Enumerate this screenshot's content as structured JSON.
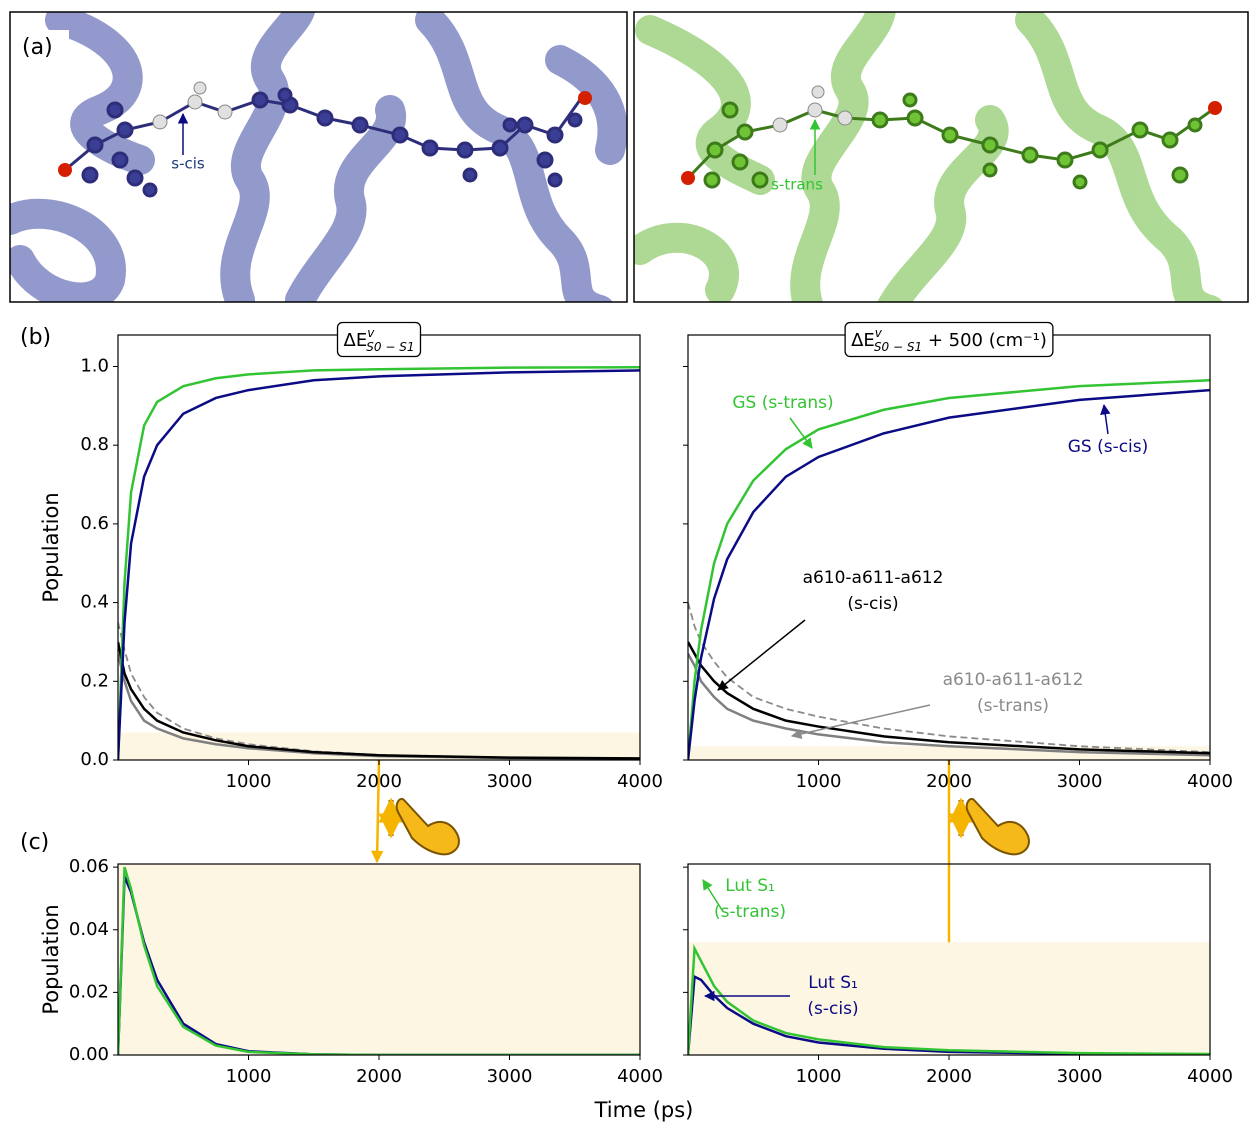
{
  "panel_a": {
    "label": "(a)",
    "left_label": "s-cis",
    "right_label": "s-trans"
  },
  "panel_b_label": "(b)",
  "panel_c_label": "(c)",
  "xlabel": "Time (ps)",
  "chart_data": [
    {
      "type": "line",
      "ylabel": "Population",
      "title": {
        "main": "ΔE",
        "sup": "v",
        "sub": "S0 − S1"
      },
      "x": [
        0,
        50,
        100,
        200,
        300,
        500,
        750,
        1000,
        1500,
        2000,
        3000,
        4000
      ],
      "xlim": [
        0,
        4000
      ],
      "xticks": [
        1000,
        2000,
        3000,
        4000
      ],
      "ylim": [
        0,
        1.08
      ],
      "yticks": [
        {
          "value": 0,
          "label": "0.0"
        },
        0.2,
        0.4,
        0.6,
        0.8,
        {
          "value": 1,
          "label": "1.0"
        }
      ],
      "highlight_y": [
        0,
        0.07
      ],
      "series": [
        {
          "color": "#8a8a8a",
          "linestyle": "dashed",
          "values": [
            0.35,
            0.28,
            0.22,
            0.16,
            0.12,
            0.08,
            0.055,
            0.04,
            0.022,
            0.013,
            0.006,
            0.003
          ]
        },
        {
          "color": "#808080",
          "linestyle": "solid",
          "values": [
            0.27,
            0.2,
            0.15,
            0.1,
            0.08,
            0.055,
            0.04,
            0.03,
            0.017,
            0.01,
            0.005,
            0.003
          ]
        },
        {
          "color": "#000000",
          "linestyle": "solid",
          "values": [
            0.3,
            0.22,
            0.18,
            0.13,
            0.1,
            0.07,
            0.05,
            0.035,
            0.02,
            0.012,
            0.006,
            0.004
          ]
        },
        {
          "color": "#33c433",
          "linestyle": "solid",
          "values": [
            0,
            0.45,
            0.68,
            0.85,
            0.91,
            0.95,
            0.97,
            0.98,
            0.99,
            0.993,
            0.997,
            0.998
          ]
        },
        {
          "color": "#0b0b85",
          "linestyle": "solid",
          "values": [
            0,
            0.35,
            0.55,
            0.72,
            0.8,
            0.88,
            0.92,
            0.94,
            0.965,
            0.975,
            0.985,
            0.99
          ]
        }
      ],
      "annotations": []
    },
    {
      "type": "line",
      "title": {
        "main": "ΔE",
        "sup": "v",
        "sub": "S0 − S1",
        "suffix": " + 500 (cm⁻¹)"
      },
      "x": [
        0,
        50,
        100,
        200,
        300,
        500,
        750,
        1000,
        1500,
        2000,
        3000,
        4000
      ],
      "xlim": [
        0,
        4000
      ],
      "xticks": [
        1000,
        2000,
        3000,
        4000
      ],
      "ylim": [
        0,
        1.08
      ],
      "yticks": [
        0,
        0.2,
        0.4,
        0.6,
        0.8,
        1
      ],
      "highlight_y": [
        0,
        0.035
      ],
      "series": [
        {
          "color": "#8a8a8a",
          "linestyle": "dashed",
          "values": [
            0.4,
            0.34,
            0.3,
            0.25,
            0.21,
            0.16,
            0.13,
            0.11,
            0.08,
            0.06,
            0.035,
            0.02
          ]
        },
        {
          "color": "#808080",
          "linestyle": "solid",
          "values": [
            0.27,
            0.24,
            0.2,
            0.16,
            0.13,
            0.1,
            0.08,
            0.065,
            0.045,
            0.035,
            0.02,
            0.012
          ]
        },
        {
          "color": "#000000",
          "linestyle": "solid",
          "values": [
            0.3,
            0.27,
            0.24,
            0.2,
            0.17,
            0.13,
            0.1,
            0.085,
            0.06,
            0.045,
            0.027,
            0.017
          ]
        },
        {
          "color": "#33c433",
          "linestyle": "solid",
          "values": [
            0,
            0.2,
            0.33,
            0.5,
            0.6,
            0.71,
            0.79,
            0.84,
            0.89,
            0.92,
            0.95,
            0.965
          ]
        },
        {
          "color": "#0b0b85",
          "linestyle": "solid",
          "values": [
            0,
            0.15,
            0.26,
            0.41,
            0.51,
            0.63,
            0.72,
            0.77,
            0.83,
            0.87,
            0.915,
            0.94
          ]
        }
      ],
      "annotations": [
        {
          "text": [
            "GS (s-trans)"
          ],
          "color": "#33c433"
        },
        {
          "text": [
            "GS (s-cis)"
          ],
          "color": "#0b0b85"
        },
        {
          "text": [
            "a610-a611-a612",
            "(s-cis)"
          ],
          "color": "#000000"
        },
        {
          "text": [
            "a610-a611-a612",
            "(s-trans)"
          ],
          "color": "#8a8a8a"
        }
      ]
    },
    {
      "type": "line",
      "ylabel": "Population",
      "x": [
        0,
        50,
        100,
        200,
        300,
        500,
        750,
        1000,
        1500,
        2000,
        3000,
        4000
      ],
      "xlim": [
        0,
        4000
      ],
      "xticks": [
        1000,
        2000,
        3000,
        4000
      ],
      "ylim": [
        0,
        0.061
      ],
      "yticks": [
        {
          "value": 0,
          "label": "0.00"
        },
        {
          "value": 0.02,
          "label": "0.02"
        },
        {
          "value": 0.04,
          "label": "0.04"
        },
        {
          "value": 0.06,
          "label": "0.06"
        }
      ],
      "highlight_y": [
        0,
        0.061
      ],
      "series": [
        {
          "color": "#0b0b85",
          "linestyle": "solid",
          "values": [
            0,
            0.057,
            0.052,
            0.036,
            0.024,
            0.01,
            0.0035,
            0.0012,
            0.0002,
            0,
            0,
            0
          ]
        },
        {
          "color": "#33c433",
          "linestyle": "solid",
          "values": [
            0,
            0.06,
            0.053,
            0.035,
            0.022,
            0.009,
            0.003,
            0.001,
            0.0002,
            0,
            0,
            0
          ]
        }
      ],
      "annotations": []
    },
    {
      "type": "line",
      "x": [
        0,
        50,
        100,
        200,
        300,
        500,
        750,
        1000,
        1500,
        2000,
        3000,
        4000
      ],
      "xlim": [
        0,
        4000
      ],
      "xticks": [
        1000,
        2000,
        3000,
        4000
      ],
      "ylim": [
        0,
        0.061
      ],
      "yticks": [
        0,
        0.02,
        0.04,
        0.06
      ],
      "highlight_y": [
        0,
        0.036
      ],
      "series": [
        {
          "color": "#0b0b85",
          "linestyle": "solid",
          "values": [
            0,
            0.025,
            0.024,
            0.019,
            0.015,
            0.01,
            0.006,
            0.004,
            0.002,
            0.001,
            0.0004,
            0.0002
          ]
        },
        {
          "color": "#33c433",
          "linestyle": "solid",
          "values": [
            0,
            0.034,
            0.03,
            0.022,
            0.017,
            0.011,
            0.007,
            0.005,
            0.0025,
            0.0015,
            0.0006,
            0.0003
          ]
        }
      ],
      "annotations": [
        {
          "text": [
            "Lut S₁",
            "(s-trans)"
          ],
          "color": "#33c433"
        },
        {
          "text": [
            "Lut S₁",
            "(s-cis)"
          ],
          "color": "#0b0b85"
        }
      ]
    }
  ]
}
